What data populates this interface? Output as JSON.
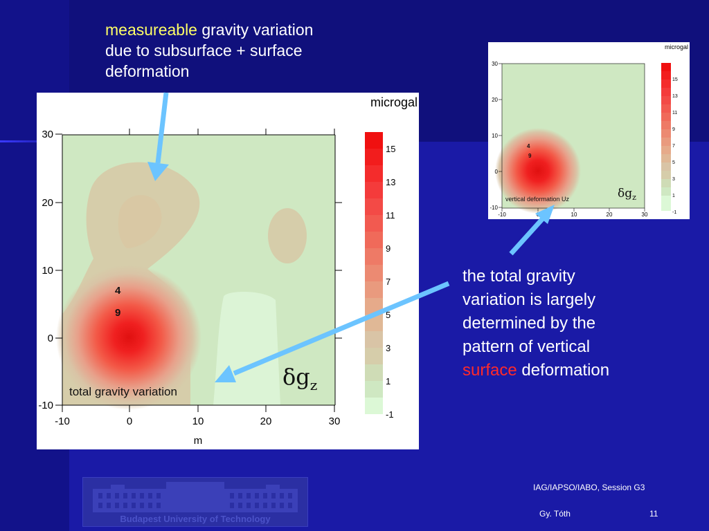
{
  "slide": {
    "caption_top": {
      "highlight": "measureable",
      "rest_line1": " gravity variation",
      "line2": "due to subsurface + surface",
      "line3": "deformation"
    },
    "caption_right": {
      "line1": "the total gravity",
      "line2": "variation is largely",
      "line3": "determined by the",
      "line4_a": "pattern of ",
      "line4_b": "vertical",
      "line5_red": "surface",
      "line5_rest": " deformation"
    },
    "footer": {
      "session": "IAG/IAPSO/IABO, Session G3",
      "author": "Gy. Tóth",
      "page": "11"
    },
    "logo": {
      "text": "Budapest University of Technology"
    },
    "colors": {
      "background": "#1a1aa6",
      "highlight": "#ffff66",
      "emphasis": "#ff2a2a",
      "arrow": "#6cc4ff"
    }
  },
  "main_plot": {
    "unit": "microgal",
    "label": "total gravity variation",
    "symbol": "δg",
    "symbol_sub": "z",
    "x_axis_label": "m",
    "x_ticks": [
      "-10",
      "0",
      "10",
      "20",
      "30"
    ],
    "y_ticks": [
      "30",
      "20",
      "10",
      "0",
      "-10"
    ],
    "contour_labels": [
      "4",
      "9"
    ],
    "colorbar_ticks": [
      "15",
      "13",
      "11",
      "9",
      "7",
      "5",
      "3",
      "1",
      "-1"
    ]
  },
  "small_plot": {
    "unit": "microgal",
    "label": "vertical deformation Uz",
    "symbol": "δg",
    "symbol_sub": "z",
    "x_ticks": [
      "-10",
      "0",
      "10",
      "20",
      "30"
    ],
    "y_ticks": [
      "30",
      "20",
      "10",
      "0",
      "-10"
    ],
    "contour_labels": [
      "4",
      "9"
    ],
    "colorbar_ticks": [
      "15",
      "13",
      "11",
      "9",
      "7",
      "5",
      "3",
      "1",
      "-1"
    ]
  }
}
